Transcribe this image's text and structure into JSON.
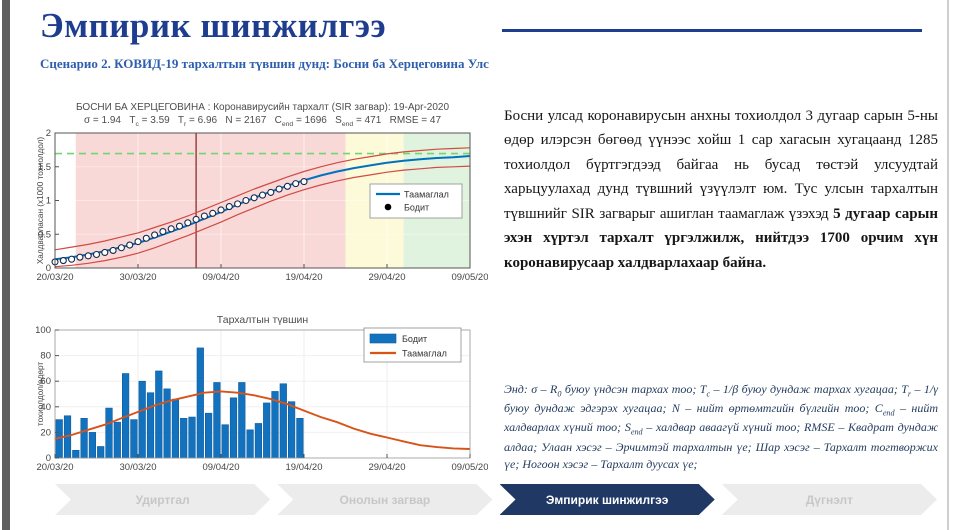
{
  "page": {
    "title": "Эмпирик шинжилгээ",
    "subtitle": "Сценарио 2. КОВИД-19 тархалтын түвшин дунд: Босни ба Херцеговина Улс"
  },
  "paragraph": {
    "segments": [
      {
        "t": "Босни улсад коронавирусын анхны тохиолдол 3 дугаар сарын 5-ны өдөр илэрсэн бөгөөд үүнээс хойш 1 сар хагасын хугацаанд 1285 тохиолдол бүртгэгдээд байгаа нь бусад төстэй улсуудтай харьцуулахад дунд түвшний үзүүлэлт юм. Тус улсын тархалтын түвшнийг SIR загварыг ашиглан таамаглаж үзэхэд "
      },
      {
        "t": "5 дугаар сарын эхэн хүртэл тархалт үргэлжилж, нийтдээ 1700 орчим хүн коронавирусаар халдварлахаар байна.",
        "b": true
      }
    ]
  },
  "note": {
    "segments": [
      {
        "t": "Энд: σ – R"
      },
      {
        "t": "0",
        "sub": true
      },
      {
        "t": " буюу үндсэн тархах тоо; T"
      },
      {
        "t": "c",
        "sub": true
      },
      {
        "t": " – 1/β буюу дундаж тархах хугацаа; T"
      },
      {
        "t": "r",
        "sub": true
      },
      {
        "t": " – 1/γ буюу дундаж эдгэрэх хугацаа; N – нийт өртөмтгийн бүлгийн тоо; C"
      },
      {
        "t": "end",
        "sub": true
      },
      {
        "t": " – нийт халдварлах хүний тоо; S"
      },
      {
        "t": "end",
        "sub": true
      },
      {
        "t": " – халдвар аваагүй хүний тоо; RMSE – Квадрат дундаж алдаа; Улаан хэсэг – Эрчимтэй тархалтын үе; Шар хэсэг – Тархалт тогтворжих үе; Ногоон хэсэг – Тархалт дуусах үе;"
      }
    ]
  },
  "nav": {
    "items": [
      {
        "label": "Удиртгал",
        "active": false
      },
      {
        "label": "Онолын загвар",
        "active": false
      },
      {
        "label": "Эмпирик шинжилгээ",
        "active": true
      },
      {
        "label": "Дүгнэлт",
        "active": false
      }
    ]
  },
  "colors": {
    "title_blue": "#1e3d8f",
    "forecast_blue": "#0072BD",
    "bound_red": "#d04b42",
    "daily_orange": "#D95319",
    "bar_blue": "#1372BD",
    "bar_edge": "#0F5CA0",
    "zone_pink": "#F9D9D8",
    "zone_yellow": "#FCFAD9",
    "zone_green": "#E0F3DF",
    "dashed_green": "#70D670",
    "vline_red": "#8E2F2F",
    "axis": "#555555",
    "tick_text": "#454545",
    "nav_active": "#1F3864"
  },
  "chart_data": [
    {
      "type": "line",
      "title": "БОСНИ БА ХЕРЦЕГОВИНА : Коронавирусийн тархалт (SIR загвар): 19-Apr-2020",
      "params_segments": [
        {
          "t": "σ = 1.94   T"
        },
        {
          "t": "c",
          "sub": true
        },
        {
          "t": " = 3.59   T"
        },
        {
          "t": "r",
          "sub": true
        },
        {
          "t": " = 6.96   N = 2167   C"
        },
        {
          "t": "end",
          "sub": true
        },
        {
          "t": " = 1696   S"
        },
        {
          "t": "end",
          "sub": true
        },
        {
          "t": " = 471   RMSE = 47"
        }
      ],
      "ylabel": "Халдварласан (x1000 тохиолдол)",
      "xlim_days": [
        0,
        50
      ],
      "ylim": [
        0,
        2
      ],
      "y_ticks": [
        0,
        0.5,
        1,
        1.5,
        2
      ],
      "x_tick_days": [
        0,
        10,
        20,
        30,
        40,
        50
      ],
      "x_tick_labels": [
        "20/03/20",
        "30/03/20",
        "09/04/20",
        "19/04/20",
        "29/04/20",
        "09/05/20"
      ],
      "zones": [
        {
          "from": 0,
          "to": 2.5,
          "color": "#ffffff"
        },
        {
          "from": 2.5,
          "to": 35,
          "color": "#F9D9D8"
        },
        {
          "from": 35,
          "to": 42,
          "color": "#FCFAD9"
        },
        {
          "from": 42,
          "to": 50,
          "color": "#E0F3DF"
        }
      ],
      "hline": {
        "value": 1.696,
        "color": "#70D670"
      },
      "vline": {
        "day": 17,
        "color": "#8E2F2F"
      },
      "series": [
        {
          "name": "Таамаглал",
          "kind": "line",
          "color": "#0072BD",
          "width": 2,
          "x_step": 2,
          "values": [
            0.13,
            0.16,
            0.2,
            0.25,
            0.31,
            0.37,
            0.45,
            0.54,
            0.63,
            0.73,
            0.83,
            0.94,
            1.04,
            1.13,
            1.22,
            1.3,
            1.37,
            1.43,
            1.48,
            1.52,
            1.56,
            1.59,
            1.61,
            1.63,
            1.64,
            1.66
          ]
        },
        {
          "name": "upper-bound",
          "kind": "line",
          "color": "#d04b42",
          "width": 1.2,
          "x_step": 2,
          "values": [
            0.27,
            0.31,
            0.35,
            0.4,
            0.46,
            0.52,
            0.6,
            0.68,
            0.77,
            0.87,
            0.97,
            1.07,
            1.17,
            1.26,
            1.35,
            1.43,
            1.5,
            1.56,
            1.61,
            1.65,
            1.69,
            1.72,
            1.74,
            1.76,
            1.77,
            1.78
          ]
        },
        {
          "name": "lower-bound",
          "kind": "line",
          "color": "#d04b42",
          "width": 1.2,
          "x_step": 2,
          "values": [
            0.02,
            0.04,
            0.07,
            0.11,
            0.16,
            0.22,
            0.3,
            0.39,
            0.48,
            0.58,
            0.68,
            0.79,
            0.89,
            0.99,
            1.08,
            1.16,
            1.23,
            1.29,
            1.34,
            1.38,
            1.42,
            1.45,
            1.47,
            1.49,
            1.5,
            1.51
          ]
        },
        {
          "name": "Бодит",
          "kind": "points",
          "color": "#15294d",
          "x_step": 1,
          "values": [
            0.09,
            0.11,
            0.13,
            0.16,
            0.18,
            0.2,
            0.23,
            0.26,
            0.3,
            0.34,
            0.39,
            0.44,
            0.49,
            0.54,
            0.58,
            0.62,
            0.67,
            0.72,
            0.77,
            0.81,
            0.86,
            0.91,
            0.95,
            1.0,
            1.04,
            1.08,
            1.12,
            1.17,
            1.21,
            1.25,
            1.28
          ]
        }
      ],
      "legend": {
        "line_label": "Таамаглал",
        "point_label": "Бодит"
      }
    },
    {
      "type": "bar",
      "title": "Тархалтын түвшин",
      "ylabel": "тохиолдол/өдөрт",
      "xlim_days": [
        0,
        50
      ],
      "ylim": [
        0,
        100
      ],
      "y_ticks": [
        0,
        20,
        40,
        60,
        80,
        100
      ],
      "x_tick_days": [
        0,
        10,
        20,
        30,
        40,
        50
      ],
      "x_tick_labels": [
        "20/03/20",
        "30/03/20",
        "09/04/20",
        "19/04/20",
        "29/04/20",
        "09/05/20"
      ],
      "bars": {
        "name": "Бодит",
        "color": "#1372BD",
        "edge": "#0F5CA0",
        "values": [
          30,
          33,
          6,
          31,
          20,
          9,
          39,
          28,
          66,
          30,
          60,
          51,
          68,
          54,
          46,
          31,
          32,
          86,
          35,
          59,
          26,
          47,
          59,
          22,
          27,
          43,
          52,
          58,
          44,
          31
        ]
      },
      "curve": {
        "name": "Таамаглал",
        "color": "#D95319",
        "x_step": 2,
        "values": [
          15,
          18,
          22,
          26,
          31,
          36,
          41,
          45,
          48,
          51,
          52,
          51,
          49,
          46,
          42,
          37,
          32,
          28,
          23,
          19,
          16,
          13,
          10,
          8.5,
          7.5,
          7
        ]
      },
      "legend": {
        "bar_label": "Бодит",
        "line_label": "Таамаглал"
      }
    }
  ]
}
